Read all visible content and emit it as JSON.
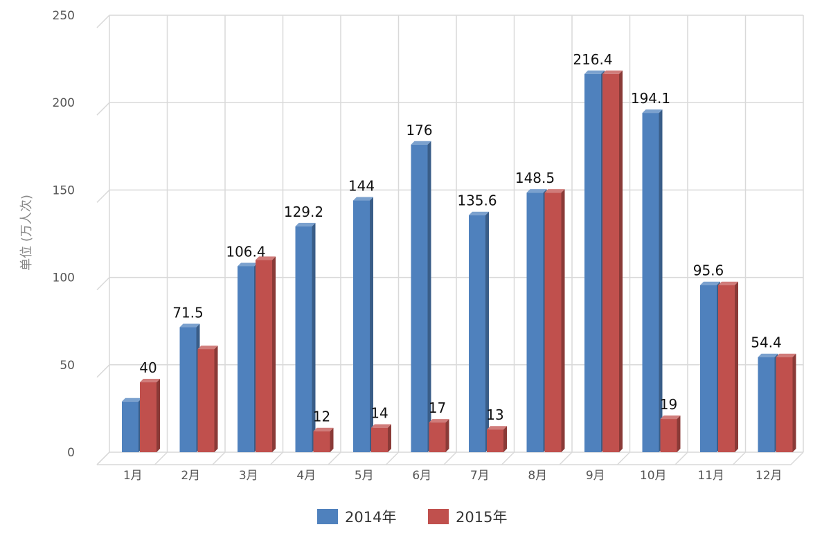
{
  "chart_data": {
    "type": "bar",
    "categories": [
      "1月",
      "2月",
      "3月",
      "4月",
      "5月",
      "6月",
      "7月",
      "8月",
      "9月",
      "10月",
      "11月",
      "12月"
    ],
    "series": [
      {
        "name": "2014年",
        "color": "#4F81BD",
        "values": [
          29,
          71.5,
          106.4,
          129.2,
          144,
          176,
          135.6,
          148.5,
          216.4,
          194.1,
          95.6,
          54.4
        ],
        "labels": [
          "",
          "71.5",
          "106.4",
          "129.2",
          "144",
          "176",
          "135.6",
          "148.5",
          "216.4",
          "194.1",
          "95.6",
          "54.4"
        ]
      },
      {
        "name": "2015年",
        "color": "#C0504D",
        "values": [
          40,
          59,
          110,
          12,
          14,
          17,
          13,
          148.5,
          216.4,
          19,
          95.6,
          54.4
        ],
        "labels": [
          "40",
          "",
          "",
          "12",
          "14",
          "17",
          "13",
          "",
          "",
          "19",
          "",
          ""
        ]
      }
    ],
    "ylabel": "单位 (万人次)",
    "ylim": [
      0,
      250
    ],
    "yticks": [
      0,
      50,
      100,
      150,
      200,
      250
    ],
    "grid": true,
    "legend": "bottom"
  }
}
